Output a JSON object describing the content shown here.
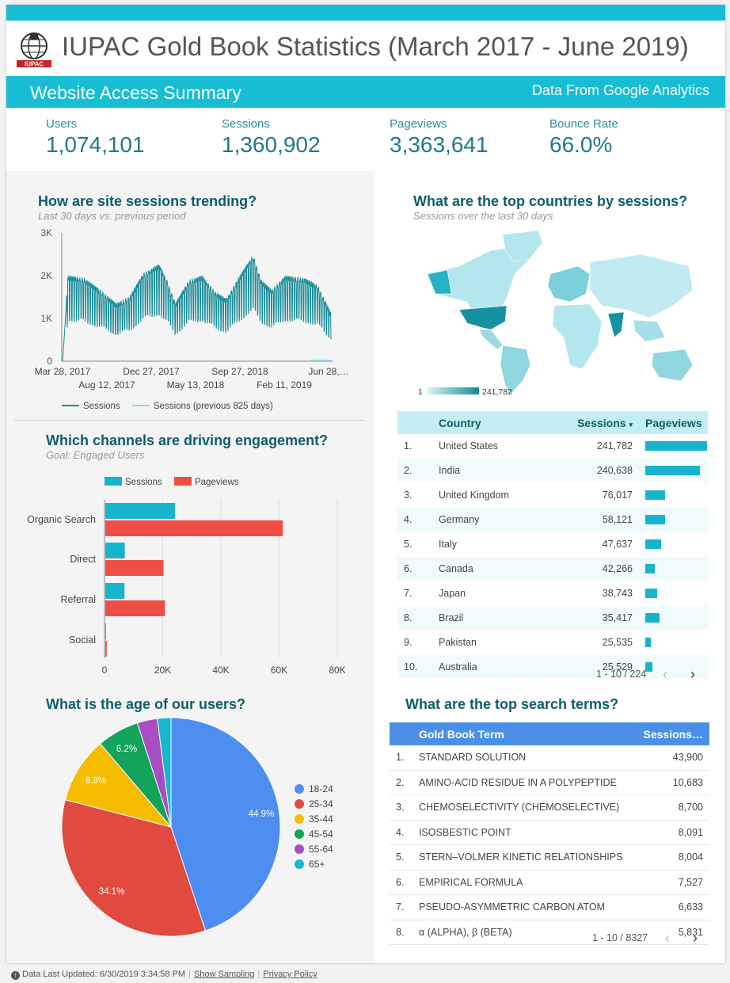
{
  "header": {
    "title": "IUPAC Gold Book Statistics (March 2017 - June 2019)",
    "logo_text": "IUPAC",
    "section_title": "Website Access Summary",
    "source_note": "Data From Google Analytics"
  },
  "kpis": [
    {
      "label": "Users",
      "value": "1,074,101"
    },
    {
      "label": "Sessions",
      "value": "1,360,902"
    },
    {
      "label": "Pageviews",
      "value": "3,363,641"
    },
    {
      "label": "Bounce Rate",
      "value": "66.0%"
    }
  ],
  "trend": {
    "title": "How are site sessions trending?",
    "subtitle": "Last 30 days vs. previous period",
    "y_ticks": [
      "3K",
      "2K",
      "1K",
      "0"
    ],
    "x_ticks_top": [
      "Mar 28, 2017",
      "Dec 27, 2017",
      "Sep 27, 2018",
      "Jun 28,…"
    ],
    "x_ticks_bottom": [
      "Aug 12, 2017",
      "May 13, 2018",
      "Feb 11, 2019"
    ],
    "legend": [
      "Sessions",
      "Sessions (previous 825 days)"
    ]
  },
  "channels": {
    "title": "Which channels are driving engagement?",
    "subtitle": "Goal: Engaged Users",
    "x_ticks": [
      "0",
      "20K",
      "40K",
      "60K",
      "80K"
    ],
    "legend": [
      "Sessions",
      "Pageviews"
    ]
  },
  "age": {
    "title": "What is the age of our users?",
    "slice_labels": [
      "44.9%",
      "34.1%",
      "9.8%",
      "6.2%"
    ]
  },
  "countries": {
    "title": "What are the top countries by sessions?",
    "subtitle": "Sessions over the last 30 days",
    "scale_min": "1",
    "scale_max": "241,782",
    "columns": [
      "Country",
      "Sessions",
      "Pageviews"
    ],
    "sort_indicator": "▾",
    "rows": [
      {
        "rank": "1.",
        "country": "United States",
        "sessions": "241,782",
        "pageviews": 0.95
      },
      {
        "rank": "2.",
        "country": "India",
        "sessions": "240,638",
        "pageviews": 0.84
      },
      {
        "rank": "3.",
        "country": "United Kingdom",
        "sessions": "76,017",
        "pageviews": 0.3
      },
      {
        "rank": "4.",
        "country": "Germany",
        "sessions": "58,121",
        "pageviews": 0.31
      },
      {
        "rank": "5.",
        "country": "Italy",
        "sessions": "47,637",
        "pageviews": 0.24
      },
      {
        "rank": "6.",
        "country": "Canada",
        "sessions": "42,266",
        "pageviews": 0.15
      },
      {
        "rank": "7.",
        "country": "Japan",
        "sessions": "38,743",
        "pageviews": 0.18
      },
      {
        "rank": "8.",
        "country": "Brazil",
        "sessions": "35,417",
        "pageviews": 0.22
      },
      {
        "rank": "9.",
        "country": "Pakistan",
        "sessions": "25,535",
        "pageviews": 0.09
      },
      {
        "rank": "10.",
        "country": "Australia",
        "sessions": "25,529",
        "pageviews": 0.11
      }
    ],
    "pager": "1 - 10 / 224"
  },
  "search": {
    "title": "What are the top search terms?",
    "columns": [
      "Gold Book Term",
      "Sessions…"
    ],
    "rows": [
      {
        "rank": "1.",
        "term": "STANDARD SOLUTION",
        "sessions": "43,900"
      },
      {
        "rank": "2.",
        "term": "AMINO-ACID RESIDUE IN A POLYPEPTIDE",
        "sessions": "10,683"
      },
      {
        "rank": "3.",
        "term": "CHEMOSELECTIVITY (CHEMOSELECTIVE)",
        "sessions": "8,700"
      },
      {
        "rank": "4.",
        "term": "ISOSBESTIC POINT",
        "sessions": "8,091"
      },
      {
        "rank": "5.",
        "term": "STERN–VOLMER KINETIC RELATIONSHIPS",
        "sessions": "8,004"
      },
      {
        "rank": "6.",
        "term": "EMPIRICAL FORMULA",
        "sessions": "7,527"
      },
      {
        "rank": "7.",
        "term": "PSEUDO-ASYMMETRIC CARBON ATOM",
        "sessions": "6,633"
      },
      {
        "rank": "8.",
        "term": "α (ALPHA), β (BETA)",
        "sessions": "5,831"
      }
    ],
    "pager": "1 - 10 / 8327"
  },
  "footer": {
    "updated": "Data Last Updated: 6/30/2019 3:34:58 PM",
    "sampling": "Show Sampling",
    "privacy": "Privacy Policy"
  },
  "colors": {
    "teal": "#17b4cb",
    "dark_teal": "#138a96",
    "red": "#f04e45",
    "blue": "#4a90e9"
  },
  "chart_data": [
    {
      "type": "line",
      "title": "How are site sessions trending?",
      "x": [
        "Mar 28, 2017",
        "Aug 12, 2017",
        "Dec 27, 2017",
        "May 13, 2018",
        "Sep 27, 2018",
        "Feb 11, 2019",
        "Jun 28, 2019"
      ],
      "ylim": [
        0,
        3000
      ],
      "series": [
        {
          "name": "Sessions",
          "values": [
            1800,
            1500,
            2000,
            1500,
            2200,
            2100,
            1100
          ]
        },
        {
          "name": "Sessions (previous 825 days)",
          "values": [
            0,
            0,
            0,
            0,
            0,
            0,
            50
          ]
        }
      ]
    },
    {
      "type": "bar",
      "title": "Which channels are driving engagement?",
      "categories": [
        "Organic Search",
        "Direct",
        "Referral",
        "Social"
      ],
      "series": [
        {
          "name": "Sessions",
          "values": [
            24000,
            6700,
            6600,
            100
          ]
        },
        {
          "name": "Pageviews",
          "values": [
            61000,
            20000,
            20500,
            500
          ]
        }
      ],
      "xlim": [
        0,
        80000
      ]
    },
    {
      "type": "pie",
      "title": "What is the age of our users?",
      "categories": [
        "18-24",
        "25-34",
        "35-44",
        "45-54",
        "55-64",
        "65+"
      ],
      "values": [
        44.9,
        34.1,
        9.8,
        6.2,
        3.0,
        2.0
      ],
      "colors": [
        "#4d8ef0",
        "#e04a3f",
        "#f5bc00",
        "#13a35a",
        "#a94ec2",
        "#16b7cf"
      ]
    },
    {
      "type": "table",
      "title": "What are the top countries by sessions?",
      "categories": [
        "United States",
        "India",
        "United Kingdom",
        "Germany",
        "Italy",
        "Canada",
        "Japan",
        "Brazil",
        "Pakistan",
        "Australia"
      ],
      "values": [
        241782,
        240638,
        76017,
        58121,
        47637,
        42266,
        38743,
        35417,
        25535,
        25529
      ]
    },
    {
      "type": "table",
      "title": "What are the top search terms?",
      "categories": [
        "STANDARD SOLUTION",
        "AMINO-ACID RESIDUE IN A POLYPEPTIDE",
        "CHEMOSELECTIVITY (CHEMOSELECTIVE)",
        "ISOSBESTIC POINT",
        "STERN–VOLMER KINETIC RELATIONSHIPS",
        "EMPIRICAL FORMULA",
        "PSEUDO-ASYMMETRIC CARBON ATOM",
        "α (ALPHA), β (BETA)"
      ],
      "values": [
        43900,
        10683,
        8700,
        8091,
        8004,
        7527,
        6633,
        5831
      ]
    }
  ]
}
